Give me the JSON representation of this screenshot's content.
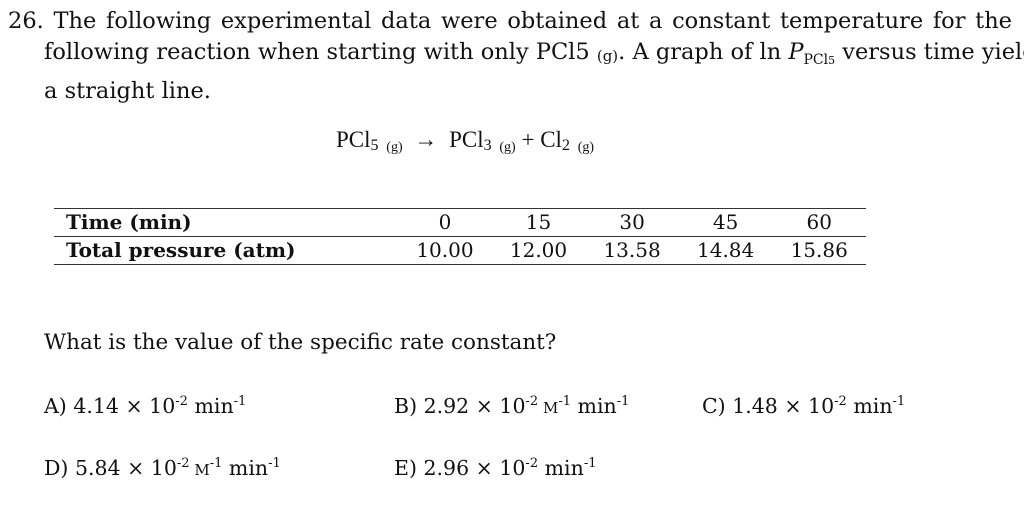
{
  "question": {
    "number": "26.",
    "line1": "The following experimental data were obtained at a constant temperature for the",
    "line2a": "following reaction when starting with only PCl5",
    "line2_phase": "(g)",
    "line2b": ". A graph of ln",
    "line2_P": "P",
    "line2_sub": "PCl",
    "line2_sub2": "5",
    "line2c": "versus time yields",
    "line3": "a straight line."
  },
  "reaction": {
    "reactant": "PCl",
    "reactant_n": "5",
    "reactant_phase": "(g)",
    "arrow": "→",
    "product1": "PCl",
    "product1_n": "3",
    "product1_phase": "(g)",
    "plus": "+",
    "product2": "Cl",
    "product2_n": "2",
    "product2_phase": "(g)"
  },
  "table": {
    "row1_header": "Time (min)",
    "row2_header": "Total pressure (atm)",
    "times": [
      "0",
      "15",
      "30",
      "45",
      "60"
    ],
    "pressures": [
      "10.00",
      "12.00",
      "13.58",
      "14.84",
      "15.86"
    ]
  },
  "prompt": "What is the value of the specific rate constant?",
  "choices": {
    "A": {
      "label": "A) 4.14 × 10",
      "exp": "-2",
      "unit": " min",
      "unit_exp": "-1"
    },
    "B": {
      "label": "B) 2.92 × 10",
      "exp": "-2",
      "unit_m": " M",
      "unit_m_exp": "-1",
      "unit": " min",
      "unit_exp": "-1"
    },
    "C": {
      "label": "C) 1.48 × 10",
      "exp": "-2",
      "unit": " min",
      "unit_exp": "-1"
    },
    "D": {
      "label": "D) 5.84 × 10",
      "exp": "-2",
      "unit_m": " M",
      "unit_m_exp": "-1",
      "unit": " min",
      "unit_exp": "-1"
    },
    "E": {
      "label": "E) 2.96 × 10",
      "exp": "-2",
      "unit": " min",
      "unit_exp": "-1"
    }
  }
}
